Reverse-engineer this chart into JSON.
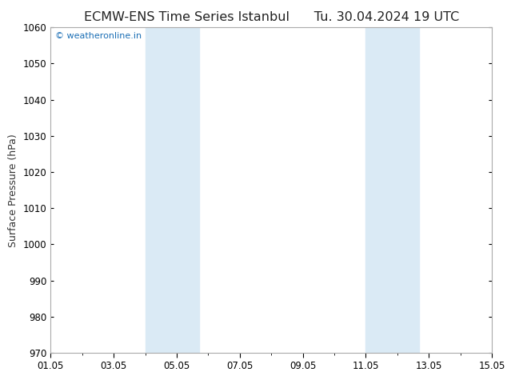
{
  "title": "ECMW-ENS Time Series Istanbul      Tu. 30.04.2024 19 UTC",
  "ylabel": "Surface Pressure (hPa)",
  "ylim": [
    970,
    1060
  ],
  "yticks": [
    970,
    980,
    990,
    1000,
    1010,
    1020,
    1030,
    1040,
    1050,
    1060
  ],
  "xlim_start": 0,
  "xlim_end": 14,
  "xtick_positions": [
    0,
    2,
    4,
    6,
    8,
    10,
    12,
    14
  ],
  "xtick_labels": [
    "01.05",
    "03.05",
    "05.05",
    "07.05",
    "09.05",
    "11.05",
    "13.05",
    "15.05"
  ],
  "shaded_bands": [
    {
      "x_start": 3.0,
      "x_end": 4.7
    },
    {
      "x_start": 10.0,
      "x_end": 11.7
    }
  ],
  "band_color": "#daeaf5",
  "background_color": "#ffffff",
  "watermark_text": "© weatheronline.in",
  "watermark_color": "#1a6eb5",
  "title_fontsize": 11.5,
  "axis_fontsize": 9,
  "tick_fontsize": 8.5,
  "watermark_fontsize": 8,
  "grid_color": "#cccccc",
  "border_color": "#888888",
  "spine_color": "#aaaaaa"
}
